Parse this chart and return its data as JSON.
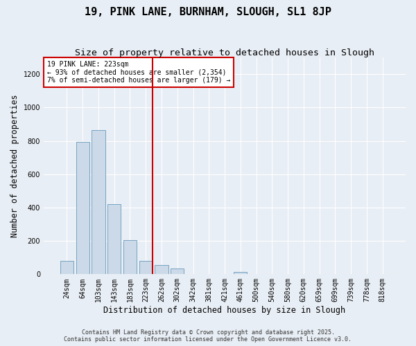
{
  "title": "19, PINK LANE, BURNHAM, SLOUGH, SL1 8JP",
  "subtitle": "Size of property relative to detached houses in Slough",
  "xlabel": "Distribution of detached houses by size in Slough",
  "ylabel": "Number of detached properties",
  "categories": [
    "24sqm",
    "64sqm",
    "103sqm",
    "143sqm",
    "183sqm",
    "223sqm",
    "262sqm",
    "302sqm",
    "342sqm",
    "381sqm",
    "421sqm",
    "461sqm",
    "500sqm",
    "540sqm",
    "580sqm",
    "620sqm",
    "659sqm",
    "699sqm",
    "739sqm",
    "778sqm",
    "818sqm"
  ],
  "values": [
    80,
    795,
    865,
    420,
    205,
    80,
    55,
    35,
    0,
    0,
    0,
    15,
    0,
    0,
    0,
    0,
    0,
    0,
    0,
    0,
    0
  ],
  "bar_color": "#ccd9e8",
  "bar_edge_color": "#6699bb",
  "vline_index": 5,
  "vline_color": "#cc0000",
  "annotation_text": "19 PINK LANE: 223sqm\n← 93% of detached houses are smaller (2,354)\n7% of semi-detached houses are larger (179) →",
  "annotation_box_color": "#ffffff",
  "annotation_box_edge": "#cc0000",
  "background_color": "#e8eef5",
  "plot_bg_color": "#e8eef5",
  "ylim": [
    0,
    1300
  ],
  "yticks": [
    0,
    200,
    400,
    600,
    800,
    1000,
    1200
  ],
  "footer_line1": "Contains HM Land Registry data © Crown copyright and database right 2025.",
  "footer_line2": "Contains public sector information licensed under the Open Government Licence v3.0.",
  "title_fontsize": 11,
  "subtitle_fontsize": 9.5,
  "tick_fontsize": 7,
  "label_fontsize": 8.5,
  "annotation_fontsize": 7,
  "footer_fontsize": 6
}
